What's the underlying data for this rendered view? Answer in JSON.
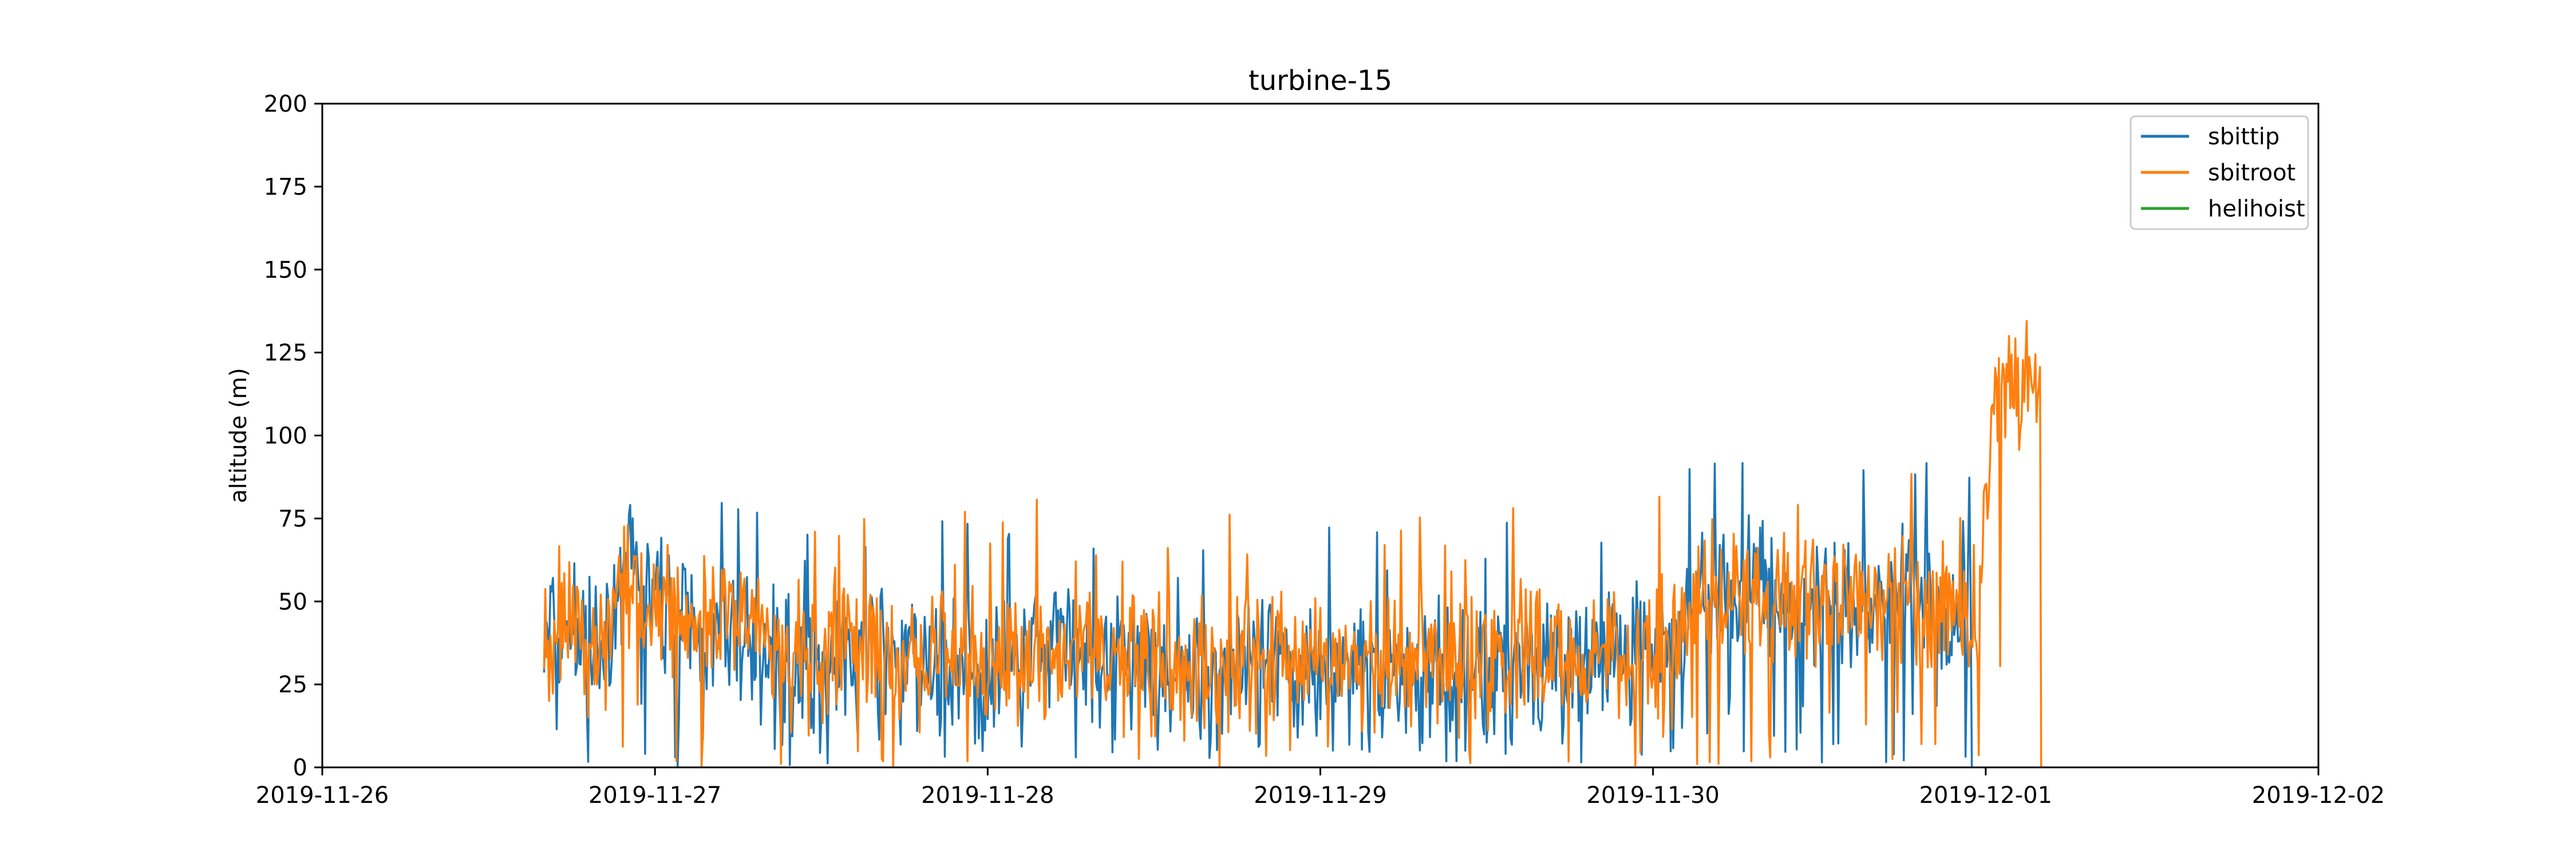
{
  "chart_data": {
    "type": "line",
    "title": "turbine-15",
    "xlabel": "",
    "ylabel": "altitude (m)",
    "xlim": [
      "2019-11-26",
      "2019-12-02"
    ],
    "ylim": [
      0,
      200
    ],
    "x_ticks": [
      "2019-11-26",
      "2019-11-27",
      "2019-11-28",
      "2019-11-29",
      "2019-11-30",
      "2019-12-01",
      "2019-12-02"
    ],
    "y_ticks": [
      0,
      25,
      50,
      75,
      100,
      125,
      150,
      175,
      200
    ],
    "grid": false,
    "legend_position": "top-right",
    "series": [
      {
        "name": "sbittip",
        "color": "#1f77b4",
        "x": [
          "2019-11-26 16:00",
          "2019-11-26 18:00",
          "2019-11-26 20:00",
          "2019-11-26 21:30",
          "2019-11-27 00:00",
          "2019-11-27 03:00",
          "2019-11-27 06:00",
          "2019-11-27 09:00",
          "2019-11-27 12:00",
          "2019-11-27 15:00",
          "2019-11-27 18:00",
          "2019-11-27 21:00",
          "2019-11-28 00:00",
          "2019-11-28 03:00",
          "2019-11-28 06:00",
          "2019-11-28 09:00",
          "2019-11-28 12:00",
          "2019-11-28 15:00",
          "2019-11-28 18:00",
          "2019-11-28 21:00",
          "2019-11-29 00:00",
          "2019-11-29 03:00",
          "2019-11-29 06:00",
          "2019-11-29 09:00",
          "2019-11-29 12:00",
          "2019-11-29 15:00",
          "2019-11-29 18:00",
          "2019-11-29 21:00",
          "2019-11-30 00:00",
          "2019-11-30 03:00",
          "2019-11-30 06:00",
          "2019-11-30 09:00",
          "2019-11-30 12:00",
          "2019-11-30 15:00",
          "2019-11-30 18:00",
          "2019-11-30 21:00",
          "2019-11-30 23:00"
        ],
        "values": [
          35,
          45,
          30,
          60,
          52,
          40,
          38,
          30,
          33,
          36,
          32,
          30,
          28,
          34,
          36,
          30,
          32,
          28,
          31,
          33,
          30,
          27,
          29,
          31,
          28,
          34,
          30,
          33,
          32,
          48,
          55,
          52,
          50,
          48,
          53,
          46,
          44
        ]
      },
      {
        "name": "sbitroot",
        "color": "#ff7f0e",
        "x": [
          "2019-11-26 16:00",
          "2019-11-26 18:00",
          "2019-11-26 20:00",
          "2019-11-26 21:30",
          "2019-11-27 00:00",
          "2019-11-27 03:00",
          "2019-11-27 06:00",
          "2019-11-27 09:00",
          "2019-11-27 12:00",
          "2019-11-27 15:00",
          "2019-11-27 18:00",
          "2019-11-27 21:00",
          "2019-11-28 00:00",
          "2019-11-28 03:00",
          "2019-11-28 06:00",
          "2019-11-28 09:00",
          "2019-11-28 12:00",
          "2019-11-28 15:00",
          "2019-11-28 18:00",
          "2019-11-28 21:00",
          "2019-11-29 00:00",
          "2019-11-29 03:00",
          "2019-11-29 06:00",
          "2019-11-29 09:00",
          "2019-11-29 12:00",
          "2019-11-29 15:00",
          "2019-11-29 18:00",
          "2019-11-29 21:00",
          "2019-11-30 00:00",
          "2019-11-30 03:00",
          "2019-11-30 06:00",
          "2019-11-30 09:00",
          "2019-11-30 12:00",
          "2019-11-30 15:00",
          "2019-11-30 18:00",
          "2019-11-30 21:00",
          "2019-11-30 23:30",
          "2019-12-01 00:30",
          "2019-12-01 01:30",
          "2019-12-01 02:30",
          "2019-12-01 03:30",
          "2019-12-01 04:00"
        ],
        "values": [
          38,
          44,
          40,
          55,
          50,
          45,
          42,
          35,
          36,
          38,
          34,
          33,
          31,
          36,
          38,
          33,
          34,
          30,
          33,
          35,
          32,
          30,
          31,
          33,
          31,
          36,
          33,
          35,
          35,
          50,
          52,
          50,
          48,
          52,
          50,
          48,
          45,
          112,
          120,
          108,
          114,
          110
        ]
      },
      {
        "name": "helihoist",
        "color": "#2ca02c",
        "x": [],
        "values": []
      }
    ]
  }
}
